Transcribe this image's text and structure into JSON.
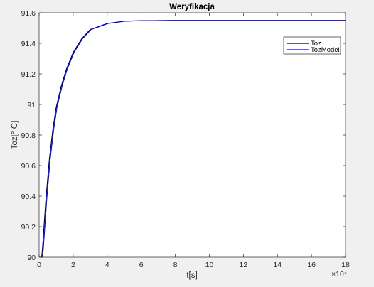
{
  "chart_data": {
    "type": "line",
    "title": "Weryfikacja",
    "xlabel": "t[s]",
    "ylabel": "Toz[° C]",
    "x_multiplier": "×10⁴",
    "xlim": [
      0,
      180000
    ],
    "ylim": [
      90,
      91.6
    ],
    "xticks": [
      0,
      20000,
      40000,
      60000,
      80000,
      100000,
      120000,
      140000,
      160000,
      180000
    ],
    "xtick_labels": [
      "0",
      "2",
      "4",
      "6",
      "8",
      "10",
      "12",
      "14",
      "16",
      "18"
    ],
    "yticks": [
      90,
      90.2,
      90.4,
      90.6,
      90.8,
      91,
      91.2,
      91.4,
      91.6
    ],
    "ytick_labels": [
      "90",
      "90.2",
      "90.4",
      "90.6",
      "90.8",
      "91",
      "91.2",
      "91.4",
      "91.6"
    ],
    "grid": false,
    "legend_position": "top-right",
    "series": [
      {
        "name": "Toz",
        "color": "#000000",
        "x": [
          0,
          1500,
          2000,
          3000,
          4000,
          6000,
          8000,
          10000,
          13000,
          16000,
          20000,
          25000,
          30000,
          40000,
          50000,
          60000,
          80000,
          100000,
          180000
        ],
        "y": [
          90.0,
          90.0,
          90.06,
          90.22,
          90.38,
          90.64,
          90.83,
          90.98,
          91.12,
          91.23,
          91.34,
          91.43,
          91.49,
          91.53,
          91.545,
          91.548,
          91.55,
          91.55,
          91.55
        ]
      },
      {
        "name": "TozModel",
        "color": "#0000ff",
        "x": [
          0,
          2000,
          2500,
          3500,
          4500,
          6500,
          8500,
          10500,
          13500,
          16500,
          20500,
          25500,
          30500,
          40500,
          50500,
          60500,
          80000,
          100000,
          180000
        ],
        "y": [
          90.0,
          90.0,
          90.06,
          90.22,
          90.38,
          90.64,
          90.83,
          90.98,
          91.12,
          91.23,
          91.34,
          91.43,
          91.49,
          91.53,
          91.545,
          91.548,
          91.55,
          91.55,
          91.55
        ]
      }
    ]
  }
}
